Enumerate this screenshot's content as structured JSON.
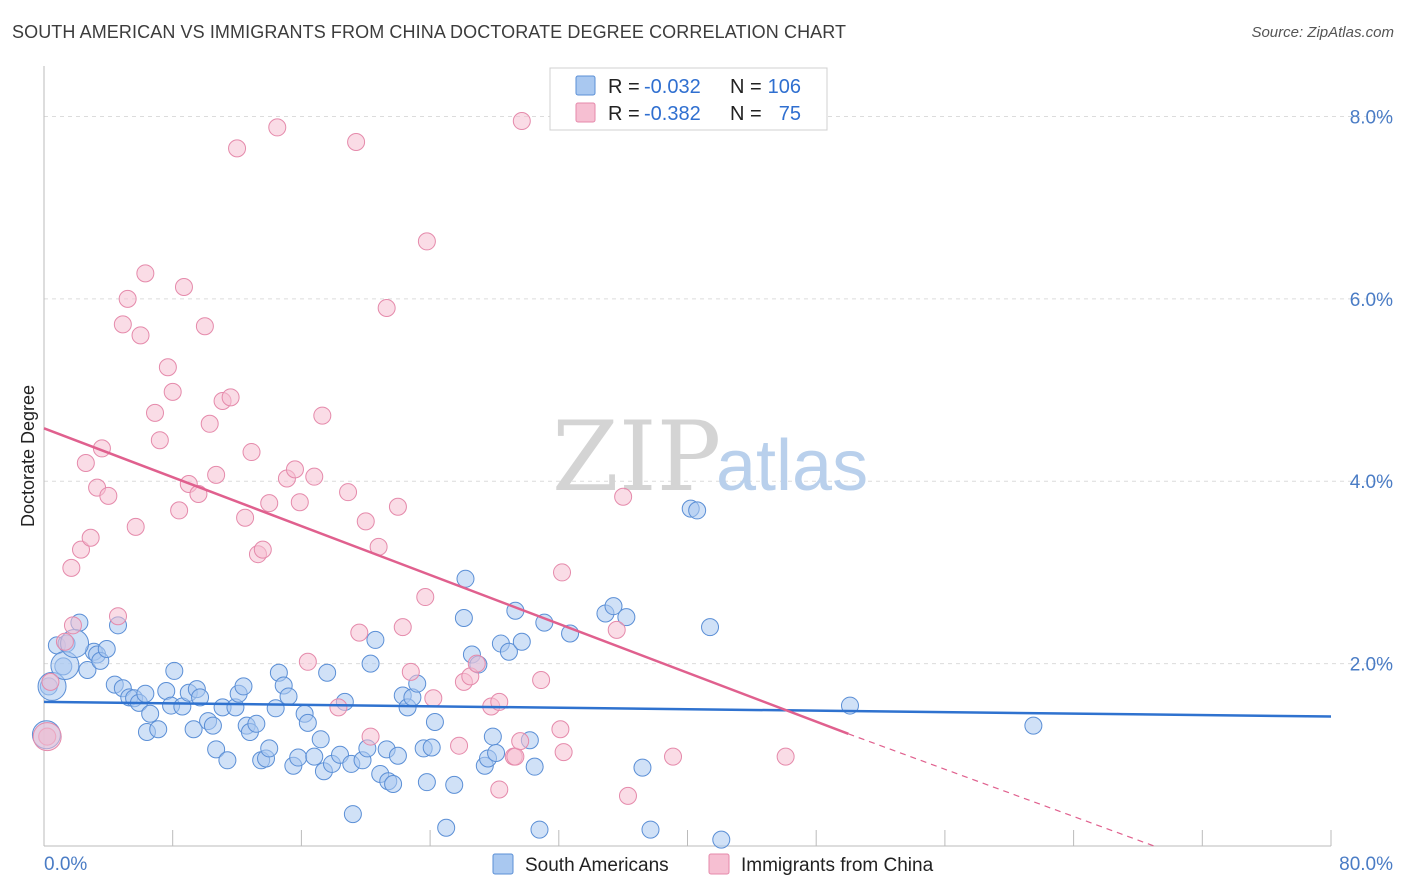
{
  "title": "SOUTH AMERICAN VS IMMIGRANTS FROM CHINA DOCTORATE DEGREE CORRELATION CHART",
  "source": "Source: ZipAtlas.com",
  "watermark": {
    "zip": "ZIP",
    "atlas": "atlas"
  },
  "legend": {
    "row1": {
      "r_label": "R =",
      "r_value": "-0.032",
      "n_label": "N =",
      "n_value": "106"
    },
    "row2": {
      "r_label": "R =",
      "r_value": "-0.382",
      "n_label": "N =",
      "n_value": "75"
    }
  },
  "colors": {
    "blue_fill": "#a9c8f0",
    "blue_stroke": "#5b8fd6",
    "blue_line": "#2f72cf",
    "pink_fill": "#f6bfd2",
    "pink_stroke": "#e58aab",
    "pink_line": "#e0608e",
    "grid": "#dcdcdc",
    "axis_text": "#4a7cc5"
  },
  "chart_data": {
    "type": "scatter",
    "title": "SOUTH AMERICAN VS IMMIGRANTS FROM CHINA DOCTORATE DEGREE CORRELATION CHART",
    "xlabel": "",
    "ylabel": "Doctorate Degree",
    "xlim": [
      0,
      80
    ],
    "ylim": [
      0,
      8.4
    ],
    "x_tick_labels": [
      "0.0%",
      "80.0%"
    ],
    "y_ticks": [
      2,
      4,
      6,
      8
    ],
    "y_tick_labels": [
      "2.0%",
      "4.0%",
      "6.0%",
      "8.0%"
    ],
    "grid": true,
    "legend_position": "bottom-center",
    "series": [
      {
        "name": "South Americans",
        "R": -0.032,
        "N": 106,
        "trend": {
          "x": [
            0,
            80
          ],
          "y": [
            1.58,
            1.42
          ],
          "dash_from": null
        },
        "points": [
          [
            0.2,
            1.2
          ],
          [
            0.3,
            1.75
          ],
          [
            0.8,
            2.2
          ],
          [
            1.2,
            1.97
          ],
          [
            1.4,
            2.22
          ],
          [
            2.2,
            2.45
          ],
          [
            2.7,
            1.93
          ],
          [
            3.1,
            2.13
          ],
          [
            3.3,
            2.1
          ],
          [
            3.5,
            2.03
          ],
          [
            3.9,
            2.16
          ],
          [
            4.4,
            1.77
          ],
          [
            4.6,
            2.42
          ],
          [
            4.9,
            1.73
          ],
          [
            5.3,
            1.63
          ],
          [
            5.6,
            1.62
          ],
          [
            5.9,
            1.57
          ],
          [
            6.3,
            1.67
          ],
          [
            6.4,
            1.25
          ],
          [
            6.6,
            1.45
          ],
          [
            7.1,
            1.28
          ],
          [
            7.6,
            1.7
          ],
          [
            7.9,
            1.54
          ],
          [
            8.1,
            1.92
          ],
          [
            8.6,
            1.53
          ],
          [
            9.0,
            1.68
          ],
          [
            9.3,
            1.28
          ],
          [
            9.5,
            1.72
          ],
          [
            9.7,
            1.63
          ],
          [
            10.2,
            1.37
          ],
          [
            10.5,
            1.32
          ],
          [
            10.7,
            1.06
          ],
          [
            11.1,
            1.52
          ],
          [
            11.4,
            0.94
          ],
          [
            11.9,
            1.52
          ],
          [
            12.1,
            1.67
          ],
          [
            12.4,
            1.75
          ],
          [
            12.6,
            1.32
          ],
          [
            12.8,
            1.25
          ],
          [
            13.2,
            1.34
          ],
          [
            13.5,
            0.94
          ],
          [
            13.8,
            0.96
          ],
          [
            14.0,
            1.07
          ],
          [
            14.4,
            1.51
          ],
          [
            14.6,
            1.9
          ],
          [
            14.9,
            1.76
          ],
          [
            15.2,
            1.64
          ],
          [
            15.5,
            0.88
          ],
          [
            15.8,
            0.97
          ],
          [
            16.2,
            1.45
          ],
          [
            16.4,
            1.35
          ],
          [
            16.8,
            0.98
          ],
          [
            17.2,
            1.17
          ],
          [
            17.4,
            0.82
          ],
          [
            17.6,
            1.9
          ],
          [
            17.9,
            0.9
          ],
          [
            18.4,
            1.0
          ],
          [
            18.7,
            1.58
          ],
          [
            19.1,
            0.9
          ],
          [
            19.2,
            0.35
          ],
          [
            19.8,
            0.94
          ],
          [
            20.1,
            1.07
          ],
          [
            20.3,
            2.0
          ],
          [
            20.6,
            2.26
          ],
          [
            20.9,
            0.79
          ],
          [
            21.3,
            1.06
          ],
          [
            21.4,
            0.71
          ],
          [
            21.7,
            0.68
          ],
          [
            22.0,
            0.99
          ],
          [
            22.3,
            1.65
          ],
          [
            22.6,
            1.52
          ],
          [
            22.9,
            1.63
          ],
          [
            23.2,
            1.78
          ],
          [
            23.6,
            1.07
          ],
          [
            23.8,
            0.7
          ],
          [
            24.1,
            1.08
          ],
          [
            24.3,
            1.36
          ],
          [
            25.0,
            0.2
          ],
          [
            25.5,
            0.67
          ],
          [
            26.1,
            2.5
          ],
          [
            26.2,
            2.93
          ],
          [
            26.6,
            2.1
          ],
          [
            27.0,
            1.99
          ],
          [
            27.4,
            0.88
          ],
          [
            27.6,
            0.96
          ],
          [
            27.9,
            1.2
          ],
          [
            28.1,
            1.02
          ],
          [
            28.4,
            2.22
          ],
          [
            28.9,
            2.13
          ],
          [
            29.3,
            2.58
          ],
          [
            29.7,
            2.24
          ],
          [
            30.2,
            1.16
          ],
          [
            30.5,
            0.87
          ],
          [
            30.8,
            0.18
          ],
          [
            31.1,
            2.45
          ],
          [
            32.7,
            2.33
          ],
          [
            34.9,
            2.55
          ],
          [
            35.4,
            2.63
          ],
          [
            36.2,
            2.51
          ],
          [
            37.2,
            0.86
          ],
          [
            37.7,
            0.18
          ],
          [
            40.2,
            3.7
          ],
          [
            40.6,
            3.68
          ],
          [
            41.4,
            2.4
          ],
          [
            42.1,
            0.07
          ],
          [
            50.1,
            1.54
          ],
          [
            61.5,
            1.32
          ]
        ],
        "large_points": [
          [
            0.15,
            1.22
          ],
          [
            0.5,
            1.75
          ],
          [
            1.3,
            1.98
          ],
          [
            1.9,
            2.22
          ]
        ]
      },
      {
        "name": "Immigrants from China",
        "R": -0.382,
        "N": 75,
        "trend": {
          "x": [
            0,
            50
          ],
          "y": [
            4.58,
            1.23
          ],
          "dash_to": [
            69.0,
            0.0
          ]
        },
        "points": [
          [
            0.2,
            1.2
          ],
          [
            0.4,
            1.8
          ],
          [
            1.3,
            2.24
          ],
          [
            1.8,
            2.42
          ],
          [
            1.7,
            3.05
          ],
          [
            2.3,
            3.25
          ],
          [
            2.6,
            4.2
          ],
          [
            2.9,
            3.38
          ],
          [
            3.3,
            3.93
          ],
          [
            3.6,
            4.36
          ],
          [
            4.0,
            3.84
          ],
          [
            4.6,
            2.52
          ],
          [
            4.9,
            5.72
          ],
          [
            5.2,
            6.0
          ],
          [
            5.7,
            3.5
          ],
          [
            6.0,
            5.6
          ],
          [
            6.3,
            6.28
          ],
          [
            6.9,
            4.75
          ],
          [
            7.2,
            4.45
          ],
          [
            7.7,
            5.25
          ],
          [
            8.0,
            4.98
          ],
          [
            8.4,
            3.68
          ],
          [
            8.7,
            6.13
          ],
          [
            9.0,
            3.97
          ],
          [
            9.6,
            3.86
          ],
          [
            10.0,
            5.7
          ],
          [
            10.3,
            4.63
          ],
          [
            10.7,
            4.07
          ],
          [
            11.1,
            4.88
          ],
          [
            11.6,
            4.92
          ],
          [
            12.0,
            7.65
          ],
          [
            12.5,
            3.6
          ],
          [
            12.9,
            4.32
          ],
          [
            13.3,
            3.2
          ],
          [
            13.6,
            3.25
          ],
          [
            14.0,
            3.76
          ],
          [
            14.5,
            7.88
          ],
          [
            15.1,
            4.03
          ],
          [
            15.6,
            4.13
          ],
          [
            15.9,
            3.77
          ],
          [
            16.4,
            2.02
          ],
          [
            16.8,
            4.05
          ],
          [
            17.3,
            4.72
          ],
          [
            18.3,
            1.52
          ],
          [
            18.9,
            3.88
          ],
          [
            19.4,
            7.72
          ],
          [
            19.6,
            2.34
          ],
          [
            20.0,
            3.56
          ],
          [
            20.3,
            1.2
          ],
          [
            20.8,
            3.28
          ],
          [
            21.3,
            5.9
          ],
          [
            22.0,
            3.72
          ],
          [
            22.3,
            2.4
          ],
          [
            22.8,
            1.91
          ],
          [
            23.7,
            2.73
          ],
          [
            24.2,
            1.62
          ],
          [
            23.8,
            6.63
          ],
          [
            25.8,
            1.1
          ],
          [
            26.1,
            1.8
          ],
          [
            26.5,
            1.86
          ],
          [
            26.9,
            2.0
          ],
          [
            27.8,
            1.53
          ],
          [
            28.3,
            1.58
          ],
          [
            28.3,
            0.62
          ],
          [
            29.2,
            0.98
          ],
          [
            29.3,
            0.98
          ],
          [
            29.6,
            1.15
          ],
          [
            30.9,
            1.82
          ],
          [
            32.1,
            1.28
          ],
          [
            32.3,
            1.03
          ],
          [
            32.2,
            3.0
          ],
          [
            35.6,
            2.37
          ],
          [
            36.0,
            3.83
          ],
          [
            36.3,
            0.55
          ],
          [
            39.1,
            0.98
          ],
          [
            46.1,
            0.98
          ],
          [
            29.7,
            7.95
          ]
        ],
        "large_points": [
          [
            0.2,
            1.2
          ]
        ]
      }
    ]
  },
  "bottom_legend": {
    "series1": "South Americans",
    "series2": "Immigrants from China"
  }
}
